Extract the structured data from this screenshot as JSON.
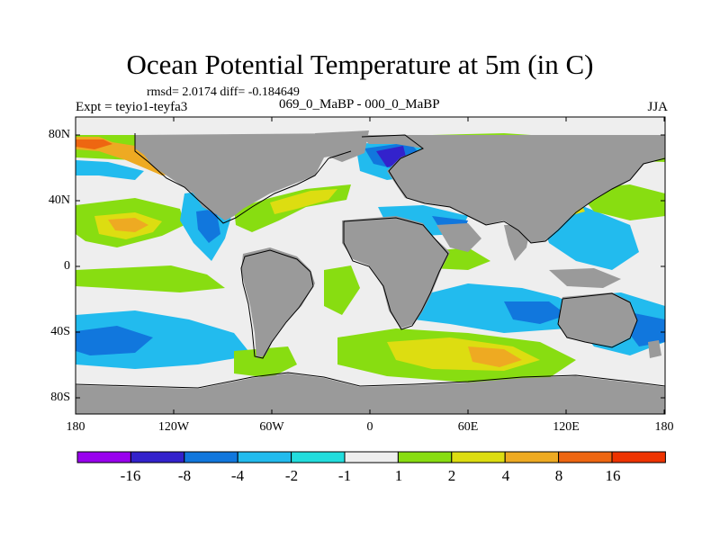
{
  "title": "Ocean Potential Temperature at 5m (in C)",
  "stats": "rmsd= 2.0174 diff= -0.184649",
  "experiment": "Expt = teyio1-teyfa3",
  "difference_experiments": "069_0_MaBP - 000_0_MaBP",
  "season": "JJA",
  "axes": {
    "x_ticks": [
      "180",
      "120W",
      "60W",
      "0",
      "60E",
      "120E",
      "180"
    ],
    "y_ticks": [
      "80N",
      "40N",
      "0",
      "40S",
      "80S"
    ],
    "lon_range": [
      -180,
      180
    ],
    "lat_range": [
      -90,
      90
    ]
  },
  "colorbar": {
    "labels": [
      "-16",
      "-8",
      "-4",
      "-2",
      "-1",
      "1",
      "2",
      "4",
      "8",
      "16"
    ],
    "colors": [
      "#9900ee",
      "#3322cc",
      "#1177dd",
      "#22bbee",
      "#22dddd",
      "#eeeeee",
      "#88dd11",
      "#dddd11",
      "#eeaa22",
      "#ee6611",
      "#ee3300"
    ]
  },
  "colors": {
    "land": "#9a9a9a",
    "coast": "#000000",
    "neutral": "#eeeeee"
  },
  "map_patches": [
    {
      "name": "warm-north-atlantic-orange",
      "lon": [
        -180,
        -165,
        -140
      ],
      "lat": [
        72,
        66,
        70
      ],
      "color": "#eeaa22"
    },
    {
      "name": "warm-north-pacific-yellow",
      "lon": [
        -150,
        -110,
        -100
      ],
      "lat": [
        54,
        54,
        62
      ],
      "color": "#dddd11"
    },
    {
      "name": "warm-pacific-band-green",
      "lon": [
        -180,
        -120,
        -100
      ],
      "lat": [
        30,
        20,
        40
      ],
      "color": "#88dd11"
    },
    {
      "name": "cool-south-pacific-cyan",
      "lon": [
        -180,
        -110,
        -120
      ],
      "lat": [
        -40,
        -40,
        -58
      ],
      "color": "#22bbee"
    },
    {
      "name": "cool-indian-ocean-blue",
      "lon": [
        30,
        80,
        120
      ],
      "lat": [
        -20,
        -35,
        -40
      ],
      "color": "#22bbee"
    },
    {
      "name": "warm-south-atlantic-orange",
      "lon": [
        0,
        40,
        90
      ],
      "lat": [
        -52,
        -58,
        -55
      ],
      "color": "#eeaa22"
    },
    {
      "name": "cold-north-sea-purple",
      "lon": [
        10,
        25,
        30
      ],
      "lat": [
        60,
        62,
        72
      ],
      "color": "#3322cc"
    }
  ]
}
